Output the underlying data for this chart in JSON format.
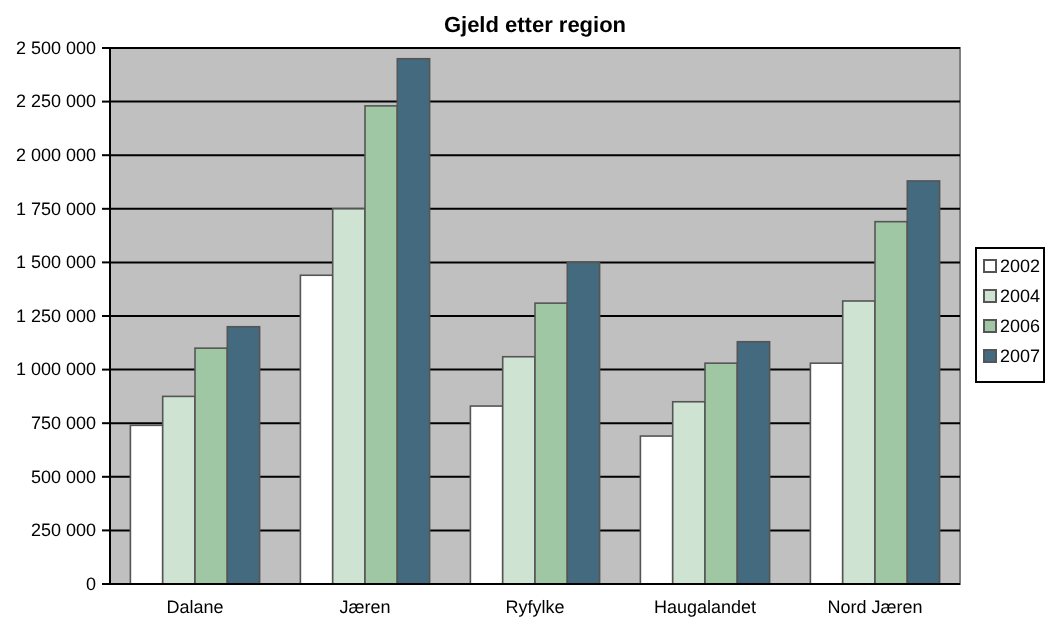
{
  "chart_data": {
    "type": "bar",
    "title": "Gjeld etter region",
    "categories": [
      "Dalane",
      "Jæren",
      "Ryfylke",
      "Haugalandet",
      "Nord Jæren"
    ],
    "series": [
      {
        "name": "2002",
        "color": "#ffffff",
        "values": [
          740000,
          1440000,
          830000,
          690000,
          1030000
        ]
      },
      {
        "name": "2004",
        "color": "#cfe3d3",
        "values": [
          875000,
          1750000,
          1060000,
          850000,
          1320000
        ]
      },
      {
        "name": "2006",
        "color": "#9fc7a4",
        "values": [
          1100000,
          2230000,
          1310000,
          1030000,
          1690000
        ]
      },
      {
        "name": "2007",
        "color": "#436a7e",
        "values": [
          1200000,
          2450000,
          1500000,
          1130000,
          1880000
        ]
      }
    ],
    "ylim": [
      0,
      2500000
    ],
    "yticks": [
      0,
      {
        "value": 250000,
        "label": "250 000"
      },
      {
        "value": 500000,
        "label": "500 000"
      },
      {
        "value": 750000,
        "label": "750 000"
      },
      {
        "value": 1000000,
        "label": "1 000 000"
      },
      {
        "value": 1250000,
        "label": "1 250 000"
      },
      {
        "value": 1500000,
        "label": "1 500 000"
      },
      {
        "value": 1750000,
        "label": "1 750 000"
      },
      {
        "value": 2000000,
        "label": "2 000 000"
      },
      {
        "value": 2250000,
        "label": "2 250 000"
      },
      {
        "value": 2500000,
        "label": "2 500 000"
      }
    ],
    "grid": "y",
    "legend": "right"
  }
}
